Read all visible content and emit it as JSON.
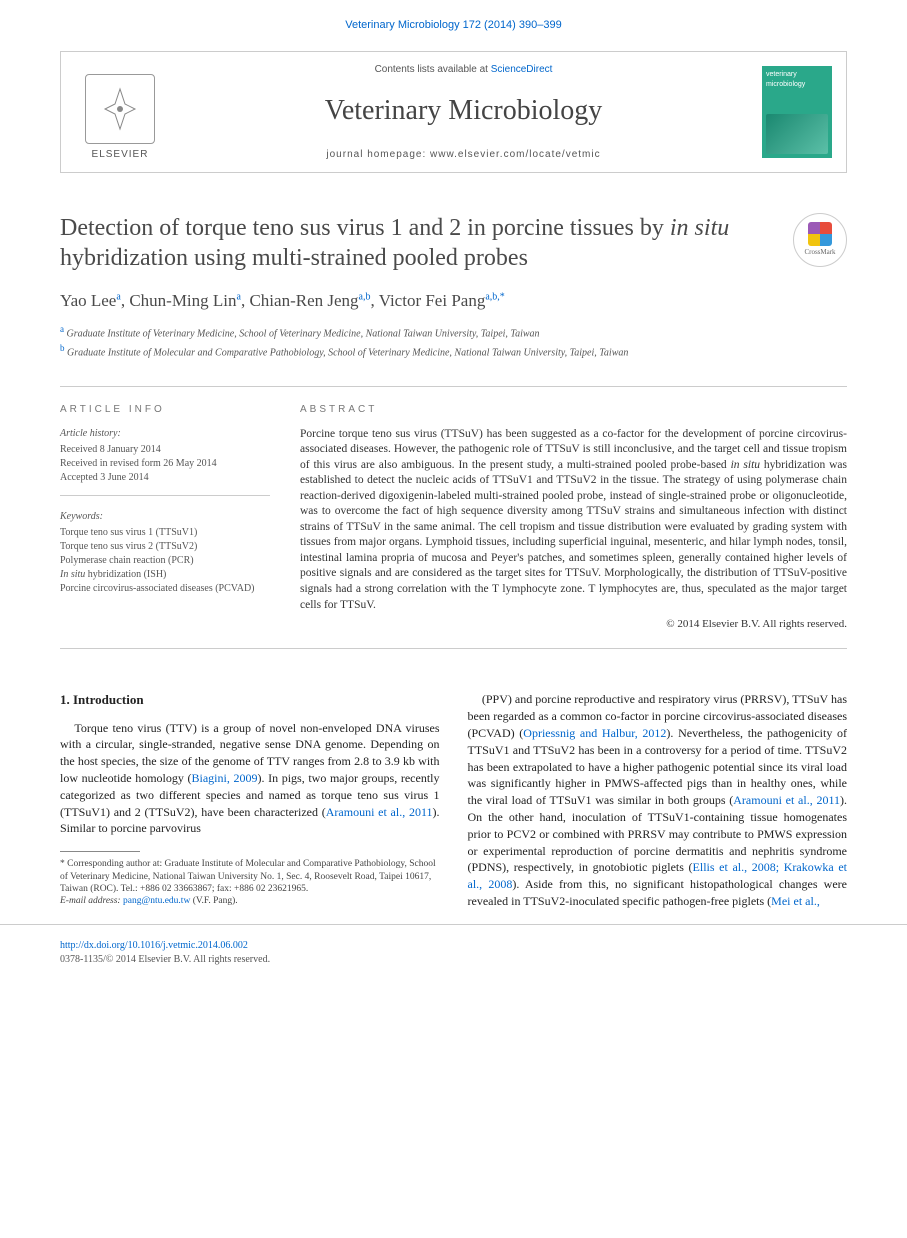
{
  "header": {
    "citation": "Veterinary Microbiology 172 (2014) 390–399",
    "contents_prefix": "Contents lists available at ",
    "contents_link": "ScienceDirect",
    "journal_name": "Veterinary Microbiology",
    "homepage_label": "journal homepage: www.elsevier.com/locate/vetmic",
    "publisher": "ELSEVIER",
    "cover_label": "veterinary microbiology"
  },
  "article": {
    "title_pre": "Detection of torque teno sus virus 1 and 2 in porcine tissues by ",
    "title_ital": "in situ",
    "title_post": " hybridization using multi-strained pooled probes",
    "crossmark": "CrossMark",
    "authors_html": "Yao Lee<sup>a</sup>, Chun-Ming Lin<sup>a</sup>, Chian-Ren Jeng<sup>a,b</sup>, Victor Fei Pang<sup>a,b,*</sup>",
    "affiliations": [
      {
        "sup": "a",
        "text": "Graduate Institute of Veterinary Medicine, School of Veterinary Medicine, National Taiwan University, Taipei, Taiwan"
      },
      {
        "sup": "b",
        "text": "Graduate Institute of Molecular and Comparative Pathobiology, School of Veterinary Medicine, National Taiwan University, Taipei, Taiwan"
      }
    ]
  },
  "info": {
    "label": "ARTICLE INFO",
    "history_label": "Article history:",
    "history": [
      "Received 8 January 2014",
      "Received in revised form 26 May 2014",
      "Accepted 3 June 2014"
    ],
    "keywords_label": "Keywords:",
    "keywords": [
      "Torque teno sus virus 1 (TTSuV1)",
      "Torque teno sus virus 2 (TTSuV2)",
      "Polymerase chain reaction (PCR)",
      "<span class='it'>In situ</span> hybridization (ISH)",
      "Porcine circovirus-associated diseases (PCVAD)"
    ]
  },
  "abstract": {
    "label": "ABSTRACT",
    "text": "Porcine torque teno sus virus (TTSuV) has been suggested as a co-factor for the development of porcine circovirus-associated diseases. However, the pathogenic role of TTSuV is still inconclusive, and the target cell and tissue tropism of this virus are also ambiguous. In the present study, a multi-strained pooled probe-based <span class='it'>in situ</span> hybridization was established to detect the nucleic acids of TTSuV1 and TTSuV2 in the tissue. The strategy of using polymerase chain reaction-derived digoxigenin-labeled multi-strained pooled probe, instead of single-strained probe or oligonucleotide, was to overcome the fact of high sequence diversity among TTSuV strains and simultaneous infection with distinct strains of TTSuV in the same animal. The cell tropism and tissue distribution were evaluated by grading system with tissues from major organs. Lymphoid tissues, including superficial inguinal, mesenteric, and hilar lymph nodes, tonsil, intestinal lamina propria of mucosa and Peyer's patches, and sometimes spleen, generally contained higher levels of positive signals and are considered as the target sites for TTSuV. Morphologically, the distribution of TTSuV-positive signals had a strong correlation with the T lymphocyte zone. T lymphocytes are, thus, speculated as the major target cells for TTSuV.",
    "copyright": "© 2014 Elsevier B.V. All rights reserved."
  },
  "body": {
    "section_heading": "1. Introduction",
    "col1": "Torque teno virus (TTV) is a group of novel non-enveloped DNA viruses with a circular, single-stranded, negative sense DNA genome. Depending on the host species, the size of the genome of TTV ranges from 2.8 to 3.9 kb with low nucleotide homology (<span class='cite'>Biagini, 2009</span>). In pigs, two major groups, recently categorized as two different species and named as torque teno sus virus 1 (TTSuV1) and 2 (TTSuV2), have been characterized (<span class='cite'>Aramouni et al., 2011</span>). Similar to porcine parvovirus",
    "col2": "(PPV) and porcine reproductive and respiratory virus (PRRSV), TTSuV has been regarded as a common co-factor in porcine circovirus-associated diseases (PCVAD) (<span class='cite'>Opriessnig and Halbur, 2012</span>). Nevertheless, the pathogenicity of TTSuV1 and TTSuV2 has been in a controversy for a period of time. TTSuV2 has been extrapolated to have a higher pathogenic potential since its viral load was significantly higher in PMWS-affected pigs than in healthy ones, while the viral load of TTSuV1 was similar in both groups (<span class='cite'>Aramouni et al., 2011</span>). On the other hand, inoculation of TTSuV1-containing tissue homogenates prior to PCV2 or combined with PRRSV may contribute to PMWS expression or experimental reproduction of porcine dermatitis and nephritis syndrome (PDNS), respectively, in gnotobiotic piglets (<span class='cite'>Ellis et al., 2008; Krakowka et al., 2008</span>). Aside from this, no significant histopathological changes were revealed in TTSuV2-inoculated specific pathogen-free piglets (<span class='cite'>Mei et al.,</span>"
  },
  "footnote": {
    "text": "* Corresponding author at: Graduate Institute of Molecular and Comparative Pathobiology, School of Veterinary Medicine, National Taiwan University No. 1, Sec. 4, Roosevelt Road, Taipei 10617, Taiwan (ROC). Tel.: +886 02 33663867; fax: +886 02 23621965.",
    "email_label": "E-mail address:",
    "email": "pang@ntu.edu.tw",
    "email_suffix": "(V.F. Pang)."
  },
  "footer": {
    "doi": "http://dx.doi.org/10.1016/j.vetmic.2014.06.002",
    "issn_line": "0378-1135/© 2014 Elsevier B.V. All rights reserved."
  },
  "style": {
    "link_color": "#0066cc",
    "text_color": "#333333",
    "cover_bg": "#2aa88a"
  }
}
